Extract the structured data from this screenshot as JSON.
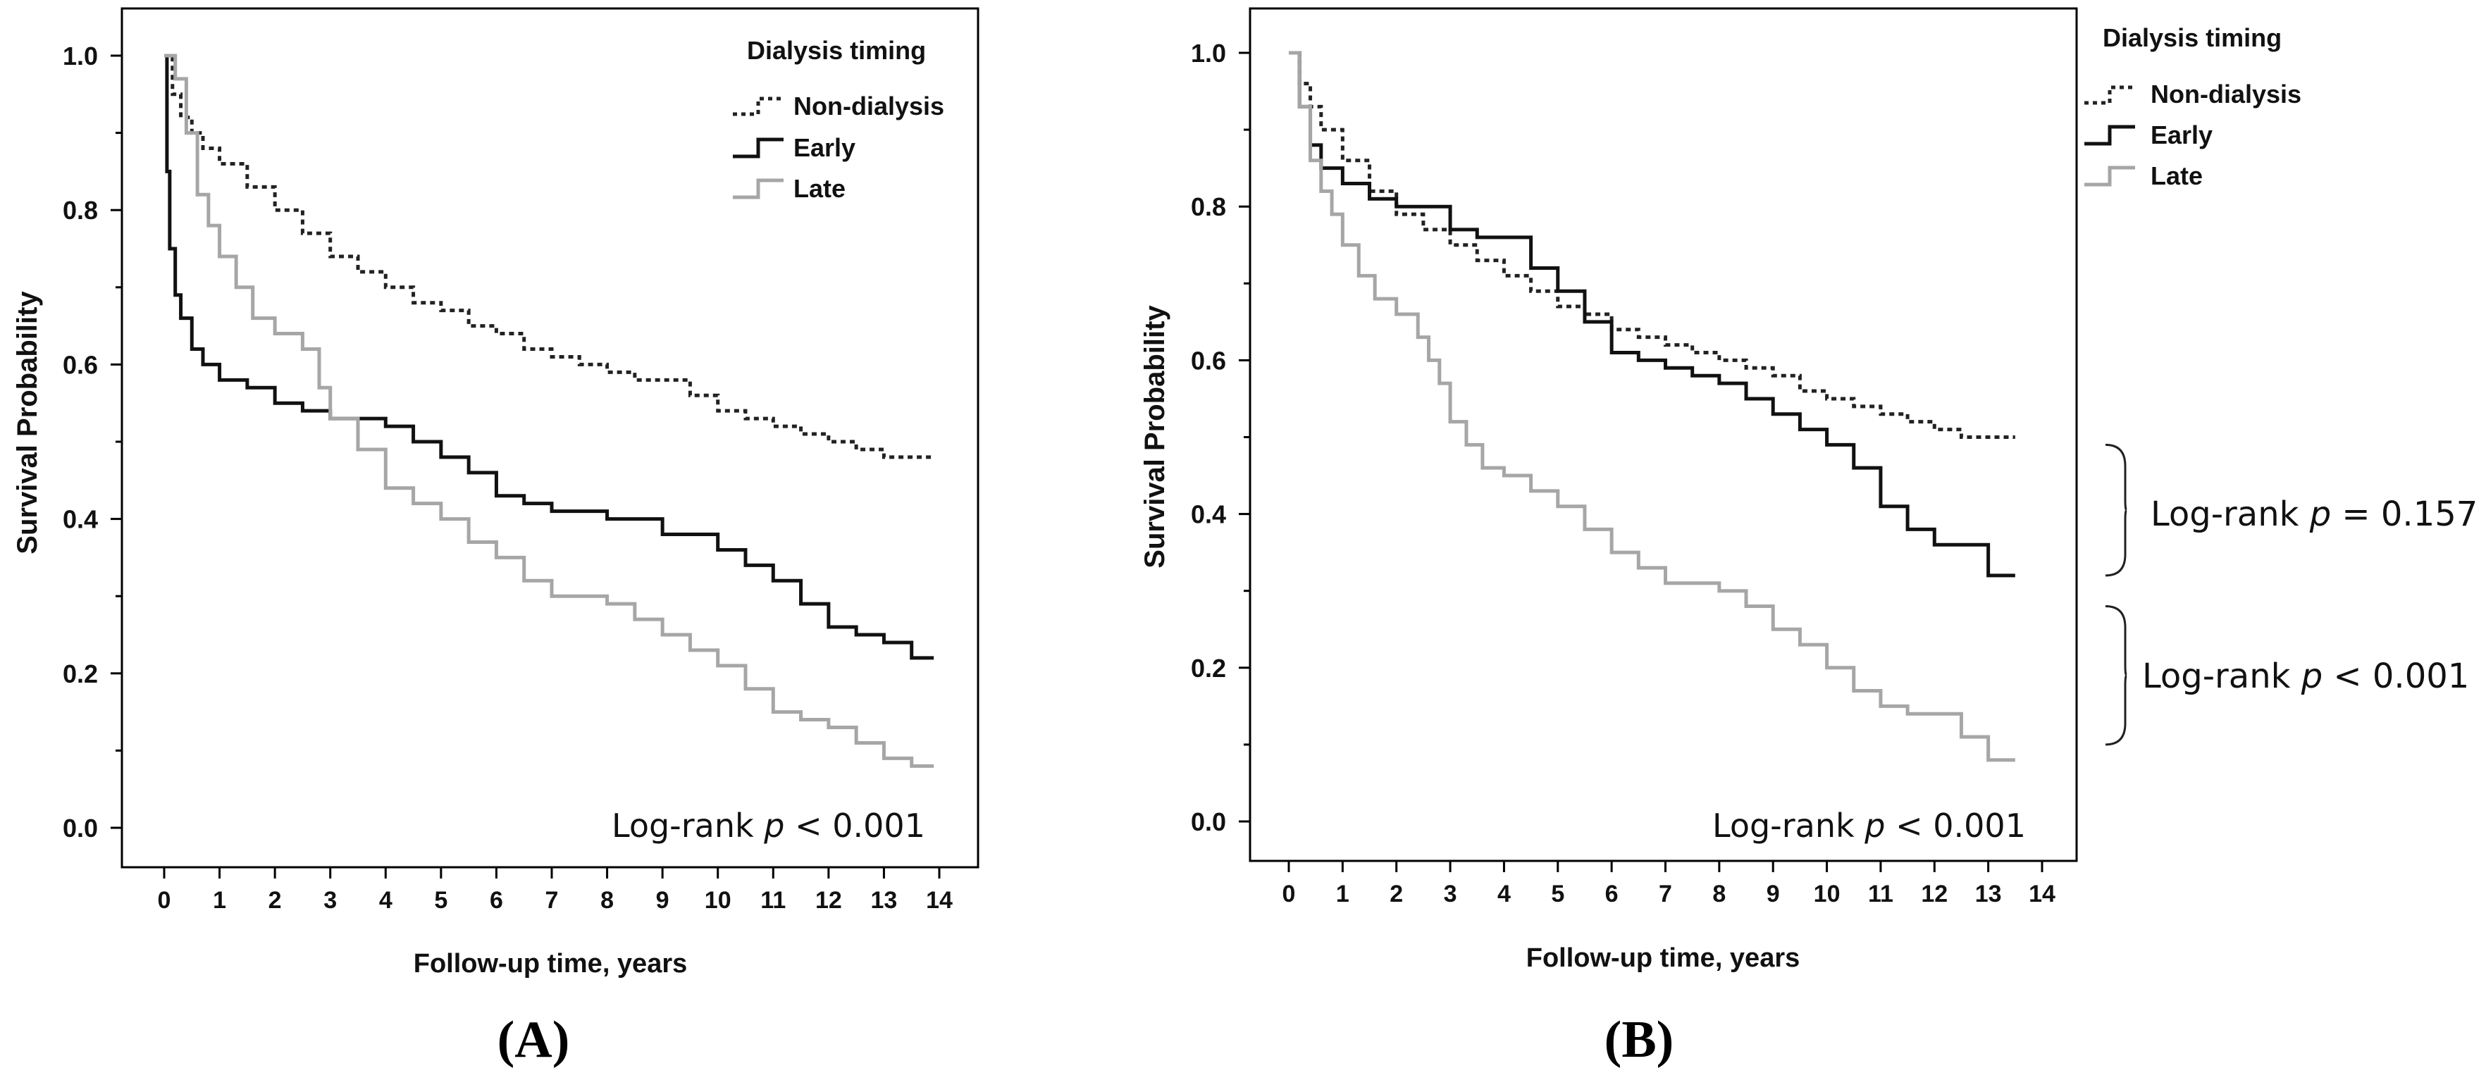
{
  "chart_data": [
    {
      "type": "line",
      "panel_label": "(A)",
      "title": "",
      "xlabel": "Follow-up time, years",
      "ylabel": "Survival Probability",
      "xlim": [
        0,
        14
      ],
      "ylim": [
        0.0,
        1.0
      ],
      "x_ticks": [
        "0",
        "1",
        "2",
        "3",
        "4",
        "5",
        "6",
        "7",
        "8",
        "9",
        "10",
        "11",
        "12",
        "13",
        "14"
      ],
      "y_ticks": [
        "0.0",
        "0.2",
        "0.4",
        "0.6",
        "0.8",
        "1.0"
      ],
      "legend_title": "Dialysis timing",
      "legend_position": "top-right",
      "annotation": {
        "prefix": "Log-rank ",
        "p": "p",
        "suffix": " < 0.001"
      },
      "series": [
        {
          "name": "Non-dialysis",
          "style": "dotted",
          "color": "#222222",
          "x": [
            0,
            0.15,
            0.3,
            0.5,
            0.7,
            1,
            1.5,
            2,
            2.5,
            3,
            3.5,
            4,
            4.5,
            5,
            5.5,
            6,
            6.5,
            7,
            7.5,
            8,
            8.5,
            9,
            9.5,
            10,
            10.5,
            11,
            11.5,
            12,
            12.5,
            13,
            13.5,
            13.9
          ],
          "y": [
            1.0,
            0.95,
            0.92,
            0.9,
            0.88,
            0.86,
            0.83,
            0.8,
            0.77,
            0.74,
            0.72,
            0.7,
            0.68,
            0.67,
            0.65,
            0.64,
            0.62,
            0.61,
            0.6,
            0.59,
            0.58,
            0.58,
            0.56,
            0.54,
            0.53,
            0.52,
            0.51,
            0.5,
            0.49,
            0.48,
            0.48,
            0.48
          ]
        },
        {
          "name": "Early",
          "style": "solid",
          "color": "#111111",
          "x": [
            0,
            0.05,
            0.1,
            0.2,
            0.3,
            0.5,
            0.7,
            1,
            1.5,
            2,
            2.5,
            3,
            4,
            4.5,
            5,
            5.5,
            6,
            6.5,
            7,
            8,
            9,
            10,
            10.5,
            11,
            11.5,
            12,
            12.5,
            13,
            13.5,
            13.9
          ],
          "y": [
            1.0,
            0.85,
            0.75,
            0.69,
            0.66,
            0.62,
            0.6,
            0.58,
            0.57,
            0.55,
            0.54,
            0.53,
            0.52,
            0.5,
            0.48,
            0.46,
            0.43,
            0.42,
            0.41,
            0.4,
            0.38,
            0.36,
            0.34,
            0.32,
            0.29,
            0.26,
            0.25,
            0.24,
            0.22,
            0.22
          ]
        },
        {
          "name": "Late",
          "style": "solid",
          "color": "#a6a6a6",
          "x": [
            0,
            0.2,
            0.4,
            0.6,
            0.8,
            1,
            1.3,
            1.6,
            2,
            2.5,
            2.8,
            3,
            3.5,
            4,
            4.5,
            5,
            5.5,
            6,
            6.5,
            7,
            7.5,
            8,
            8.5,
            9,
            9.5,
            10,
            10.5,
            11,
            11.5,
            12,
            12.5,
            13,
            13.5,
            13.9
          ],
          "y": [
            1.0,
            0.97,
            0.9,
            0.82,
            0.78,
            0.74,
            0.7,
            0.66,
            0.64,
            0.62,
            0.57,
            0.53,
            0.49,
            0.44,
            0.42,
            0.4,
            0.37,
            0.35,
            0.32,
            0.3,
            0.3,
            0.29,
            0.27,
            0.25,
            0.23,
            0.21,
            0.18,
            0.15,
            0.14,
            0.13,
            0.11,
            0.09,
            0.08,
            0.08
          ]
        }
      ]
    },
    {
      "type": "line",
      "panel_label": "(B)",
      "title": "",
      "xlabel": "Follow-up time, years",
      "ylabel": "Survival Probability",
      "xlim": [
        0,
        14
      ],
      "ylim": [
        0.0,
        1.0
      ],
      "x_ticks": [
        "0",
        "1",
        "2",
        "3",
        "4",
        "5",
        "6",
        "7",
        "8",
        "9",
        "10",
        "11",
        "12",
        "13",
        "14"
      ],
      "y_ticks": [
        "0.0",
        "0.2",
        "0.4",
        "0.6",
        "0.8",
        "1.0"
      ],
      "legend_title": "Dialysis timing",
      "legend_position": "top-right",
      "annotation": {
        "prefix": "Log-rank ",
        "p": "p",
        "suffix": " < 0.001"
      },
      "bracket_annotations": [
        {
          "prefix": "Log-rank ",
          "p": "p",
          "suffix": " = 0.157",
          "y_range": [
            0.32,
            0.49
          ]
        },
        {
          "prefix": "Log-rank ",
          "p": "p",
          "suffix": " < 0.001",
          "y_range": [
            0.1,
            0.28
          ]
        }
      ],
      "series": [
        {
          "name": "Non-dialysis",
          "style": "dotted",
          "color": "#222222",
          "x": [
            0,
            0.2,
            0.4,
            0.6,
            1,
            1.5,
            2,
            2.5,
            3,
            3.5,
            4,
            4.5,
            5,
            5.5,
            6,
            6.5,
            7,
            7.5,
            8,
            8.5,
            9,
            9.5,
            10,
            10.5,
            11,
            11.5,
            12,
            12.5,
            13,
            13.5
          ],
          "y": [
            1.0,
            0.96,
            0.93,
            0.9,
            0.86,
            0.82,
            0.79,
            0.77,
            0.75,
            0.73,
            0.71,
            0.69,
            0.67,
            0.66,
            0.64,
            0.63,
            0.62,
            0.61,
            0.6,
            0.59,
            0.58,
            0.56,
            0.55,
            0.54,
            0.53,
            0.52,
            0.51,
            0.5,
            0.5,
            0.5
          ]
        },
        {
          "name": "Early",
          "style": "solid",
          "color": "#111111",
          "x": [
            0,
            0.2,
            0.4,
            0.6,
            1,
            1.5,
            2,
            2.5,
            3,
            3.5,
            4,
            4.5,
            5,
            5.5,
            6,
            6.5,
            7,
            7.5,
            8,
            8.5,
            9,
            9.5,
            10,
            10.5,
            11,
            11.5,
            12,
            12.5,
            13,
            13.5
          ],
          "y": [
            1.0,
            0.93,
            0.88,
            0.85,
            0.83,
            0.81,
            0.8,
            0.8,
            0.77,
            0.76,
            0.76,
            0.72,
            0.69,
            0.65,
            0.61,
            0.6,
            0.59,
            0.58,
            0.57,
            0.55,
            0.53,
            0.51,
            0.49,
            0.46,
            0.41,
            0.38,
            0.36,
            0.36,
            0.32,
            0.32
          ]
        },
        {
          "name": "Late",
          "style": "solid",
          "color": "#a6a6a6",
          "x": [
            0,
            0.2,
            0.4,
            0.6,
            0.8,
            1,
            1.3,
            1.6,
            2,
            2.4,
            2.6,
            2.8,
            3,
            3.3,
            3.6,
            4,
            4.5,
            5,
            5.5,
            6,
            6.5,
            7,
            7.5,
            8,
            8.5,
            9,
            9.5,
            10,
            10.5,
            11,
            11.5,
            12,
            12.5,
            13,
            13.5
          ],
          "y": [
            1.0,
            0.93,
            0.86,
            0.82,
            0.79,
            0.75,
            0.71,
            0.68,
            0.66,
            0.63,
            0.6,
            0.57,
            0.52,
            0.49,
            0.46,
            0.45,
            0.43,
            0.41,
            0.38,
            0.35,
            0.33,
            0.31,
            0.31,
            0.3,
            0.28,
            0.25,
            0.23,
            0.2,
            0.17,
            0.15,
            0.14,
            0.14,
            0.11,
            0.08,
            0.08
          ]
        }
      ]
    }
  ]
}
